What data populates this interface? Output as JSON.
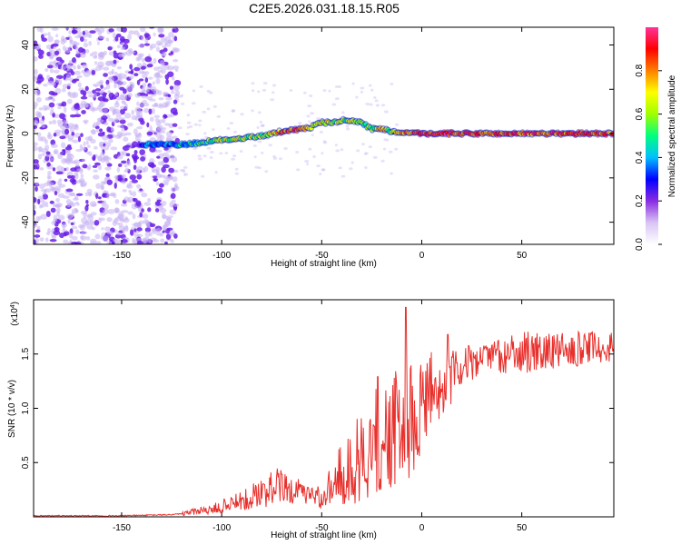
{
  "title": "C2E5.2026.031.18.15.R05",
  "colors": {
    "snr_line": "#e8302c",
    "scatter_dark": "#6a1fe8",
    "scatter_light": "#c7b2f2"
  },
  "colorbar": {
    "label": "Normalized spectral amplitude",
    "ticks": [
      "0.0",
      "0.2",
      "0.4",
      "0.6",
      "0.8"
    ],
    "tick_values": [
      0.0,
      0.2,
      0.4,
      0.6,
      0.8
    ],
    "range": [
      0,
      1
    ],
    "stops": [
      "#ffffff",
      "#d9c4f5",
      "#8a2be2",
      "#0000ff",
      "#00bfff",
      "#00ff80",
      "#a0ff00",
      "#ffff00",
      "#ff8000",
      "#ff0000",
      "#ff3399"
    ]
  },
  "chart_data": [
    {
      "type": "heatmap",
      "title": "C2E5.2026.031.18.15.R05",
      "xlabel": "Height of straight line (km)",
      "ylabel": "Frequency (Hz)",
      "xlim": [
        -194,
        96
      ],
      "ylim": [
        -50,
        48
      ],
      "xticks": [
        -150,
        -100,
        -50,
        0,
        50
      ],
      "xtick_labels": [
        "-150",
        "-100",
        "-50",
        "0",
        "50"
      ],
      "yticks": [
        -40,
        -20,
        0,
        20,
        40
      ],
      "ytick_labels": [
        "-40",
        "-20",
        "0",
        "20",
        "40"
      ],
      "ridge": {
        "x": [
          -140,
          -130,
          -120,
          -110,
          -100,
          -90,
          -80,
          -70,
          -60,
          -55,
          -50,
          -45,
          -40,
          -35,
          -30,
          -25,
          -20,
          -15,
          -10,
          -5,
          0,
          10,
          20,
          40,
          60,
          80,
          95
        ],
        "y": [
          -5,
          -5,
          -5,
          -4,
          -3,
          -2,
          -1,
          1,
          2,
          3,
          5,
          5,
          6,
          6,
          5,
          2,
          2,
          1,
          0,
          0,
          0,
          0,
          0,
          0,
          0,
          0,
          0
        ],
        "amplitude": [
          0.3,
          0.35,
          0.45,
          0.5,
          0.6,
          0.62,
          0.6,
          0.8,
          0.85,
          0.6,
          0.7,
          0.65,
          0.6,
          0.6,
          0.55,
          0.6,
          0.75,
          0.5,
          0.8,
          0.85,
          0.85,
          0.9,
          0.85,
          0.85,
          0.85,
          0.85,
          0.85
        ]
      },
      "noise_region_x": [
        -194,
        -122
      ]
    },
    {
      "type": "line",
      "xlabel": "Height of straight line (km)",
      "ylabel": "SNR (10 * v/v)",
      "scale_note": "(x10",
      "scale_exp": "4",
      "xlim": [
        -194,
        96
      ],
      "ylim": [
        0,
        2.0
      ],
      "xticks": [
        -150,
        -100,
        -50,
        0,
        50
      ],
      "xtick_labels": [
        "-150",
        "-100",
        "-50",
        "0",
        "50"
      ],
      "yticks": [
        0.5,
        1.0,
        1.5
      ],
      "ytick_labels": [
        "0.5",
        "1.0",
        "1.5"
      ],
      "series": [
        {
          "name": "SNR",
          "x": [
            -194,
            -150,
            -125,
            -115,
            -105,
            -95,
            -90,
            -85,
            -80,
            -75,
            -70,
            -65,
            -60,
            -55,
            -50,
            -45,
            -40,
            -35,
            -30,
            -25,
            -20,
            -15,
            -10,
            -5,
            0,
            5,
            10,
            15,
            20,
            25,
            30,
            40,
            50,
            60,
            70,
            80,
            90,
            96
          ],
          "values": [
            0.01,
            0.01,
            0.02,
            0.04,
            0.07,
            0.12,
            0.14,
            0.18,
            0.22,
            0.25,
            0.28,
            0.24,
            0.22,
            0.2,
            0.18,
            0.3,
            0.38,
            0.45,
            0.55,
            0.65,
            0.7,
            0.8,
            0.75,
            0.9,
            0.95,
            1.15,
            1.2,
            1.25,
            1.35,
            1.42,
            1.45,
            1.47,
            1.5,
            1.52,
            1.53,
            1.54,
            1.55,
            1.55
          ],
          "spread": [
            0.0,
            0.0,
            0.01,
            0.03,
            0.05,
            0.08,
            0.09,
            0.12,
            0.17,
            0.2,
            0.18,
            0.15,
            0.12,
            0.1,
            0.12,
            0.2,
            0.3,
            0.4,
            0.45,
            0.5,
            0.55,
            0.6,
            0.5,
            0.6,
            0.5,
            0.4,
            0.35,
            0.3,
            0.2,
            0.18,
            0.15,
            0.18,
            0.2,
            0.2,
            0.18,
            0.18,
            0.15,
            0.15
          ],
          "peaks": [
            {
              "x": -8,
              "y": 1.93
            },
            {
              "x": 13,
              "y": 1.68
            },
            {
              "x": -22,
              "y": 1.29
            }
          ]
        }
      ]
    }
  ]
}
